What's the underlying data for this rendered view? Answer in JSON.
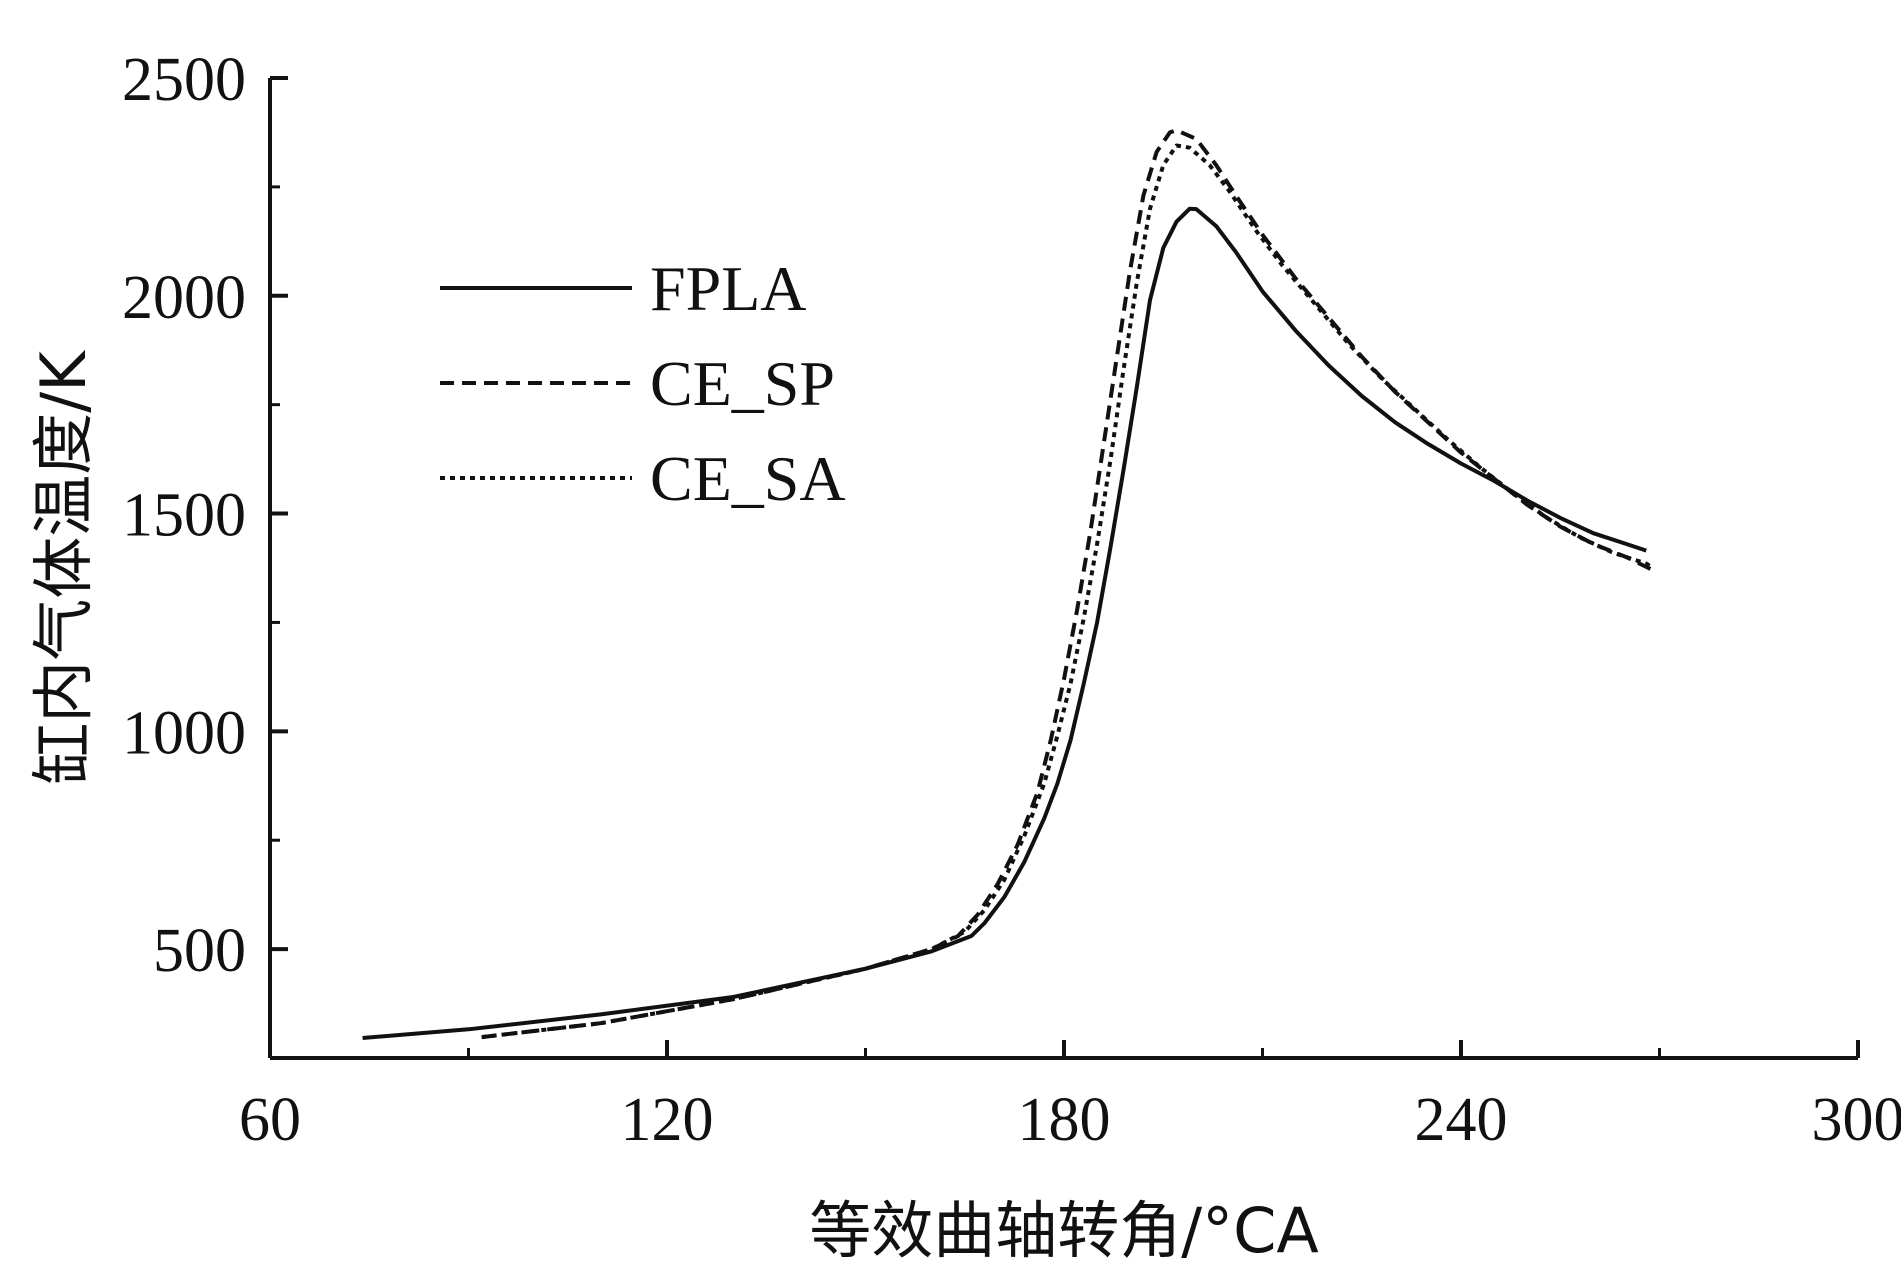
{
  "chart_data": {
    "type": "line",
    "xlabel": "等效曲轴转角/°CA",
    "ylabel": "缸内气体温度/K",
    "xlim": [
      60,
      300
    ],
    "ylim": [
      250,
      2500
    ],
    "x_ticks": [
      60,
      120,
      180,
      240,
      300
    ],
    "y_ticks": [
      500,
      1000,
      1500,
      2000,
      2500
    ],
    "grid": false,
    "legend_position": "upper-left",
    "series": [
      {
        "name": "FPLA",
        "style": "solid",
        "color": "#111111",
        "points": [
          [
            74,
            296
          ],
          [
            90,
            316
          ],
          [
            110,
            350
          ],
          [
            130,
            390
          ],
          [
            150,
            455
          ],
          [
            160,
            495
          ],
          [
            166,
            530
          ],
          [
            168,
            560
          ],
          [
            171,
            620
          ],
          [
            174,
            700
          ],
          [
            177,
            800
          ],
          [
            179,
            880
          ],
          [
            181,
            980
          ],
          [
            183,
            1110
          ],
          [
            185,
            1250
          ],
          [
            187,
            1420
          ],
          [
            189,
            1600
          ],
          [
            191,
            1790
          ],
          [
            193,
            1990
          ],
          [
            195,
            2110
          ],
          [
            197,
            2170
          ],
          [
            199,
            2200
          ],
          [
            200,
            2199
          ],
          [
            203,
            2160
          ],
          [
            206,
            2100
          ],
          [
            210,
            2010
          ],
          [
            215,
            1920
          ],
          [
            220,
            1840
          ],
          [
            225,
            1770
          ],
          [
            230,
            1710
          ],
          [
            235,
            1660
          ],
          [
            240,
            1615
          ],
          [
            245,
            1575
          ],
          [
            250,
            1530
          ],
          [
            255,
            1490
          ],
          [
            260,
            1455
          ],
          [
            265,
            1430
          ],
          [
            268,
            1415
          ]
        ]
      },
      {
        "name": "CE_SP",
        "style": "dashed",
        "color": "#111111",
        "points": [
          [
            92,
            298
          ],
          [
            110,
            330
          ],
          [
            130,
            385
          ],
          [
            150,
            455
          ],
          [
            160,
            500
          ],
          [
            164,
            530
          ],
          [
            167,
            580
          ],
          [
            170,
            650
          ],
          [
            173,
            740
          ],
          [
            176,
            860
          ],
          [
            178,
            980
          ],
          [
            180,
            1120
          ],
          [
            182,
            1280
          ],
          [
            184,
            1460
          ],
          [
            186,
            1660
          ],
          [
            188,
            1860
          ],
          [
            190,
            2060
          ],
          [
            192,
            2230
          ],
          [
            194,
            2330
          ],
          [
            196,
            2375
          ],
          [
            197,
            2380
          ],
          [
            200,
            2360
          ],
          [
            203,
            2300
          ],
          [
            206,
            2230
          ],
          [
            210,
            2140
          ],
          [
            215,
            2040
          ],
          [
            220,
            1950
          ],
          [
            225,
            1860
          ],
          [
            230,
            1780
          ],
          [
            235,
            1710
          ],
          [
            240,
            1640
          ],
          [
            245,
            1580
          ],
          [
            250,
            1520
          ],
          [
            255,
            1470
          ],
          [
            260,
            1430
          ],
          [
            265,
            1400
          ],
          [
            269,
            1370
          ]
        ]
      },
      {
        "name": "CE_SA",
        "style": "dotted",
        "color": "#111111",
        "points": [
          [
            92,
            298
          ],
          [
            110,
            330
          ],
          [
            130,
            385
          ],
          [
            150,
            455
          ],
          [
            160,
            500
          ],
          [
            165,
            540
          ],
          [
            168,
            590
          ],
          [
            171,
            660
          ],
          [
            174,
            760
          ],
          [
            177,
            880
          ],
          [
            179,
            990
          ],
          [
            181,
            1110
          ],
          [
            183,
            1260
          ],
          [
            185,
            1430
          ],
          [
            187,
            1620
          ],
          [
            189,
            1830
          ],
          [
            191,
            2030
          ],
          [
            193,
            2200
          ],
          [
            195,
            2300
          ],
          [
            197,
            2345
          ],
          [
            199,
            2340
          ],
          [
            202,
            2300
          ],
          [
            205,
            2240
          ],
          [
            209,
            2150
          ],
          [
            213,
            2070
          ],
          [
            218,
            1980
          ],
          [
            223,
            1890
          ],
          [
            228,
            1810
          ],
          [
            233,
            1740
          ],
          [
            238,
            1670
          ],
          [
            243,
            1605
          ],
          [
            248,
            1545
          ],
          [
            253,
            1490
          ],
          [
            258,
            1445
          ],
          [
            263,
            1410
          ],
          [
            268,
            1385
          ],
          [
            269,
            1375
          ]
        ]
      }
    ]
  }
}
